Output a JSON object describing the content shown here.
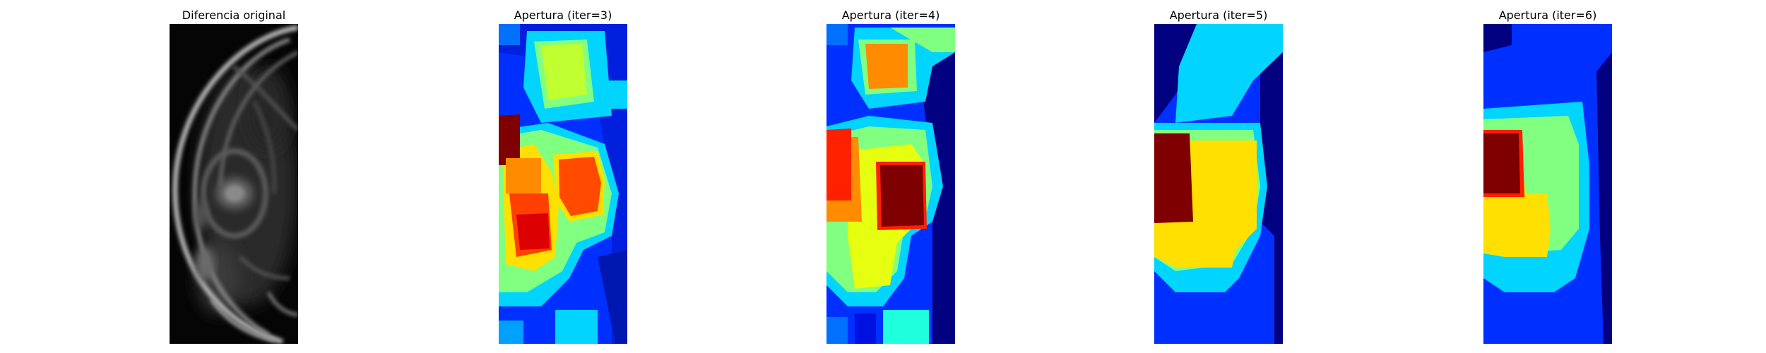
{
  "figure": {
    "panels": [
      {
        "title": "Diferencia original",
        "colormap": "gray"
      },
      {
        "title": "Apertura (iter=3)",
        "colormap": "jet"
      },
      {
        "title": "Apertura (iter=4)",
        "colormap": "jet"
      },
      {
        "title": "Apertura (iter=5)",
        "colormap": "jet"
      },
      {
        "title": "Apertura (iter=6)",
        "colormap": "jet"
      }
    ],
    "colors": {
      "background": "#ffffff",
      "jet_dark_red": "#7f0000",
      "jet_red": "#ff2000",
      "jet_orange": "#ff8c00",
      "jet_yellow": "#ffe000",
      "jet_green": "#80ff80",
      "jet_cyan": "#00d4ff",
      "jet_blue": "#0030ff",
      "jet_navy": "#000080"
    }
  }
}
